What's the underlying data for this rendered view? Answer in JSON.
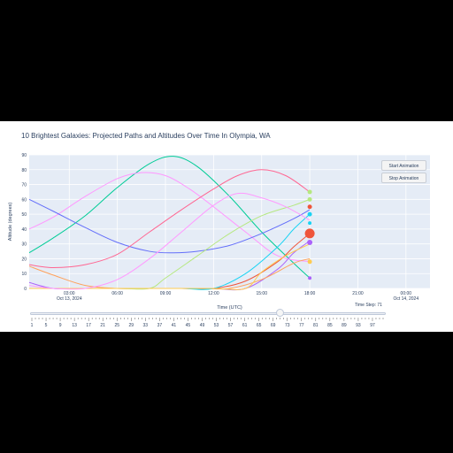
{
  "chart_data": {
    "type": "line",
    "title": "10 Brightest Galaxies: Projected Paths and Altitudes Over Time In Olympia, WA",
    "xlabel": "Time (UTC)",
    "ylabel": "Altitude (degrees)",
    "x_start": "2024-10-13 00:30",
    "x_end": "2024-10-14 01:30",
    "xlim_hours": [
      0.5,
      25.5
    ],
    "ylim": [
      0,
      90
    ],
    "y_ticks": [
      0,
      10,
      20,
      30,
      40,
      50,
      60,
      70,
      80,
      90
    ],
    "x_ticks": [
      {
        "hour": 3,
        "label": "03:00",
        "sub": "Oct 13, 2024"
      },
      {
        "hour": 6,
        "label": "06:00",
        "sub": ""
      },
      {
        "hour": 9,
        "label": "09:00",
        "sub": ""
      },
      {
        "hour": 12,
        "label": "12:00",
        "sub": ""
      },
      {
        "hour": 15,
        "label": "15:00",
        "sub": ""
      },
      {
        "hour": 18,
        "label": "18:00",
        "sub": ""
      },
      {
        "hour": 21,
        "label": "21:00",
        "sub": ""
      },
      {
        "hour": 24,
        "label": "00:00",
        "sub": "Oct 14, 2024"
      }
    ],
    "grid": true,
    "series": [
      {
        "color": "#00cc96",
        "x": [
          0.5,
          2,
          4,
          6,
          8,
          9.5,
          11,
          13,
          15,
          17,
          18
        ],
        "y": [
          24,
          34,
          49,
          68,
          84,
          89,
          82,
          62,
          38,
          17,
          7
        ]
      },
      {
        "color": "#ab63fa",
        "x": [
          0.5,
          2,
          4,
          6,
          8,
          10,
          12,
          14,
          16,
          17,
          18
        ],
        "y": [
          4,
          0,
          0,
          0,
          0,
          0,
          0,
          0,
          13,
          24,
          32
        ]
      },
      {
        "color": "#ff97ff",
        "x": [
          0.5,
          2,
          4,
          6,
          7.5,
          9,
          10.5,
          12,
          14,
          16,
          18
        ],
        "y": [
          40,
          48,
          62,
          74,
          78,
          76,
          67,
          55,
          38,
          22,
          18
        ]
      },
      {
        "color": "#ffa15a",
        "x": [
          0.5,
          2,
          4,
          6,
          8,
          10,
          11.5,
          13,
          15,
          17,
          18
        ],
        "y": [
          15,
          9,
          2,
          0,
          0,
          0,
          0,
          0,
          6,
          17,
          20
        ]
      },
      {
        "color": "#636efa",
        "x": [
          0.5,
          2,
          4,
          6,
          8,
          9.5,
          11,
          13,
          15,
          17,
          18
        ],
        "y": [
          60,
          52,
          41,
          31,
          25,
          24,
          25,
          29,
          37,
          47,
          53
        ]
      },
      {
        "color": "#ef553b",
        "x": [
          0.5,
          2,
          4,
          6,
          8,
          10,
          12,
          14,
          16,
          17,
          18
        ],
        "y": [
          0,
          0,
          0,
          0,
          0,
          0,
          0,
          5,
          18,
          28,
          37
        ]
      },
      {
        "color": "#19d3f3",
        "x": [
          0.5,
          2,
          4,
          6,
          8,
          10,
          12,
          14,
          16,
          17,
          18
        ],
        "y": [
          0,
          0,
          0,
          0,
          0,
          0,
          0,
          10,
          28,
          40,
          50
        ]
      },
      {
        "color": "#b6e880",
        "x": [
          0.5,
          2,
          4,
          6,
          8,
          9,
          11,
          13,
          15,
          17,
          18
        ],
        "y": [
          0,
          0,
          0,
          0,
          0,
          7,
          22,
          37,
          49,
          56,
          60
        ]
      },
      {
        "color": "#ff6692",
        "x": [
          0.5,
          2,
          4,
          6,
          8,
          10,
          12,
          13.5,
          15,
          16.5,
          18
        ],
        "y": [
          16,
          14,
          16,
          23,
          38,
          53,
          67,
          76,
          80,
          76,
          65
        ]
      },
      {
        "color": "#fecb52",
        "x": [
          0.5,
          2,
          4,
          6,
          8,
          10,
          12,
          14,
          15,
          16.5,
          18
        ],
        "y": [
          0,
          0,
          0,
          0,
          0,
          0,
          0,
          0,
          11,
          22,
          30
        ]
      },
      {
        "color": "#ff9aff",
        "x": [
          0.5,
          2,
          4,
          6,
          8,
          10,
          12,
          13.5,
          15,
          16.5,
          18
        ],
        "y": [
          2,
          0,
          0,
          6,
          20,
          38,
          56,
          64,
          61,
          55,
          46
        ]
      }
    ],
    "markers": [
      {
        "color": "#b6e880",
        "y": 65,
        "size": 2.5
      },
      {
        "color": "#b6e880",
        "y": 60,
        "size": 2.5
      },
      {
        "color": "#ef553b",
        "y": 55,
        "size": 2.5
      },
      {
        "color": "#19d3f3",
        "y": 50,
        "size": 2.5
      },
      {
        "color": "#19d3f3",
        "y": 44,
        "size": 2
      },
      {
        "color": "#ef553b",
        "y": 37,
        "size": 5.5
      },
      {
        "color": "#ab63fa",
        "y": 31,
        "size": 3
      },
      {
        "color": "#fecb52",
        "y": 18,
        "size": 2.5
      },
      {
        "color": "#ab63fa",
        "y": 7,
        "size": 2
      }
    ],
    "marker_hour": 18
  },
  "controls": {
    "start_label": "Start Animation",
    "stop_label": "Stop Animation",
    "time_step_label": "Time Step: 71"
  },
  "slider": {
    "min": 1,
    "max": 100,
    "value": 71,
    "tick_labels": [
      "1",
      "5",
      "9",
      "13",
      "17",
      "21",
      "25",
      "29",
      "33",
      "37",
      "41",
      "45",
      "49",
      "53",
      "57",
      "61",
      "65",
      "69",
      "73",
      "77",
      "81",
      "85",
      "89",
      "93",
      "97"
    ],
    "tick_values": [
      1,
      5,
      9,
      13,
      17,
      21,
      25,
      29,
      33,
      37,
      41,
      45,
      49,
      53,
      57,
      61,
      65,
      69,
      73,
      77,
      81,
      85,
      89,
      93,
      97
    ]
  },
  "colors": {
    "plot_bg": "#e5ecf6",
    "grid": "#ffffff",
    "text": "#2a3f5f"
  }
}
